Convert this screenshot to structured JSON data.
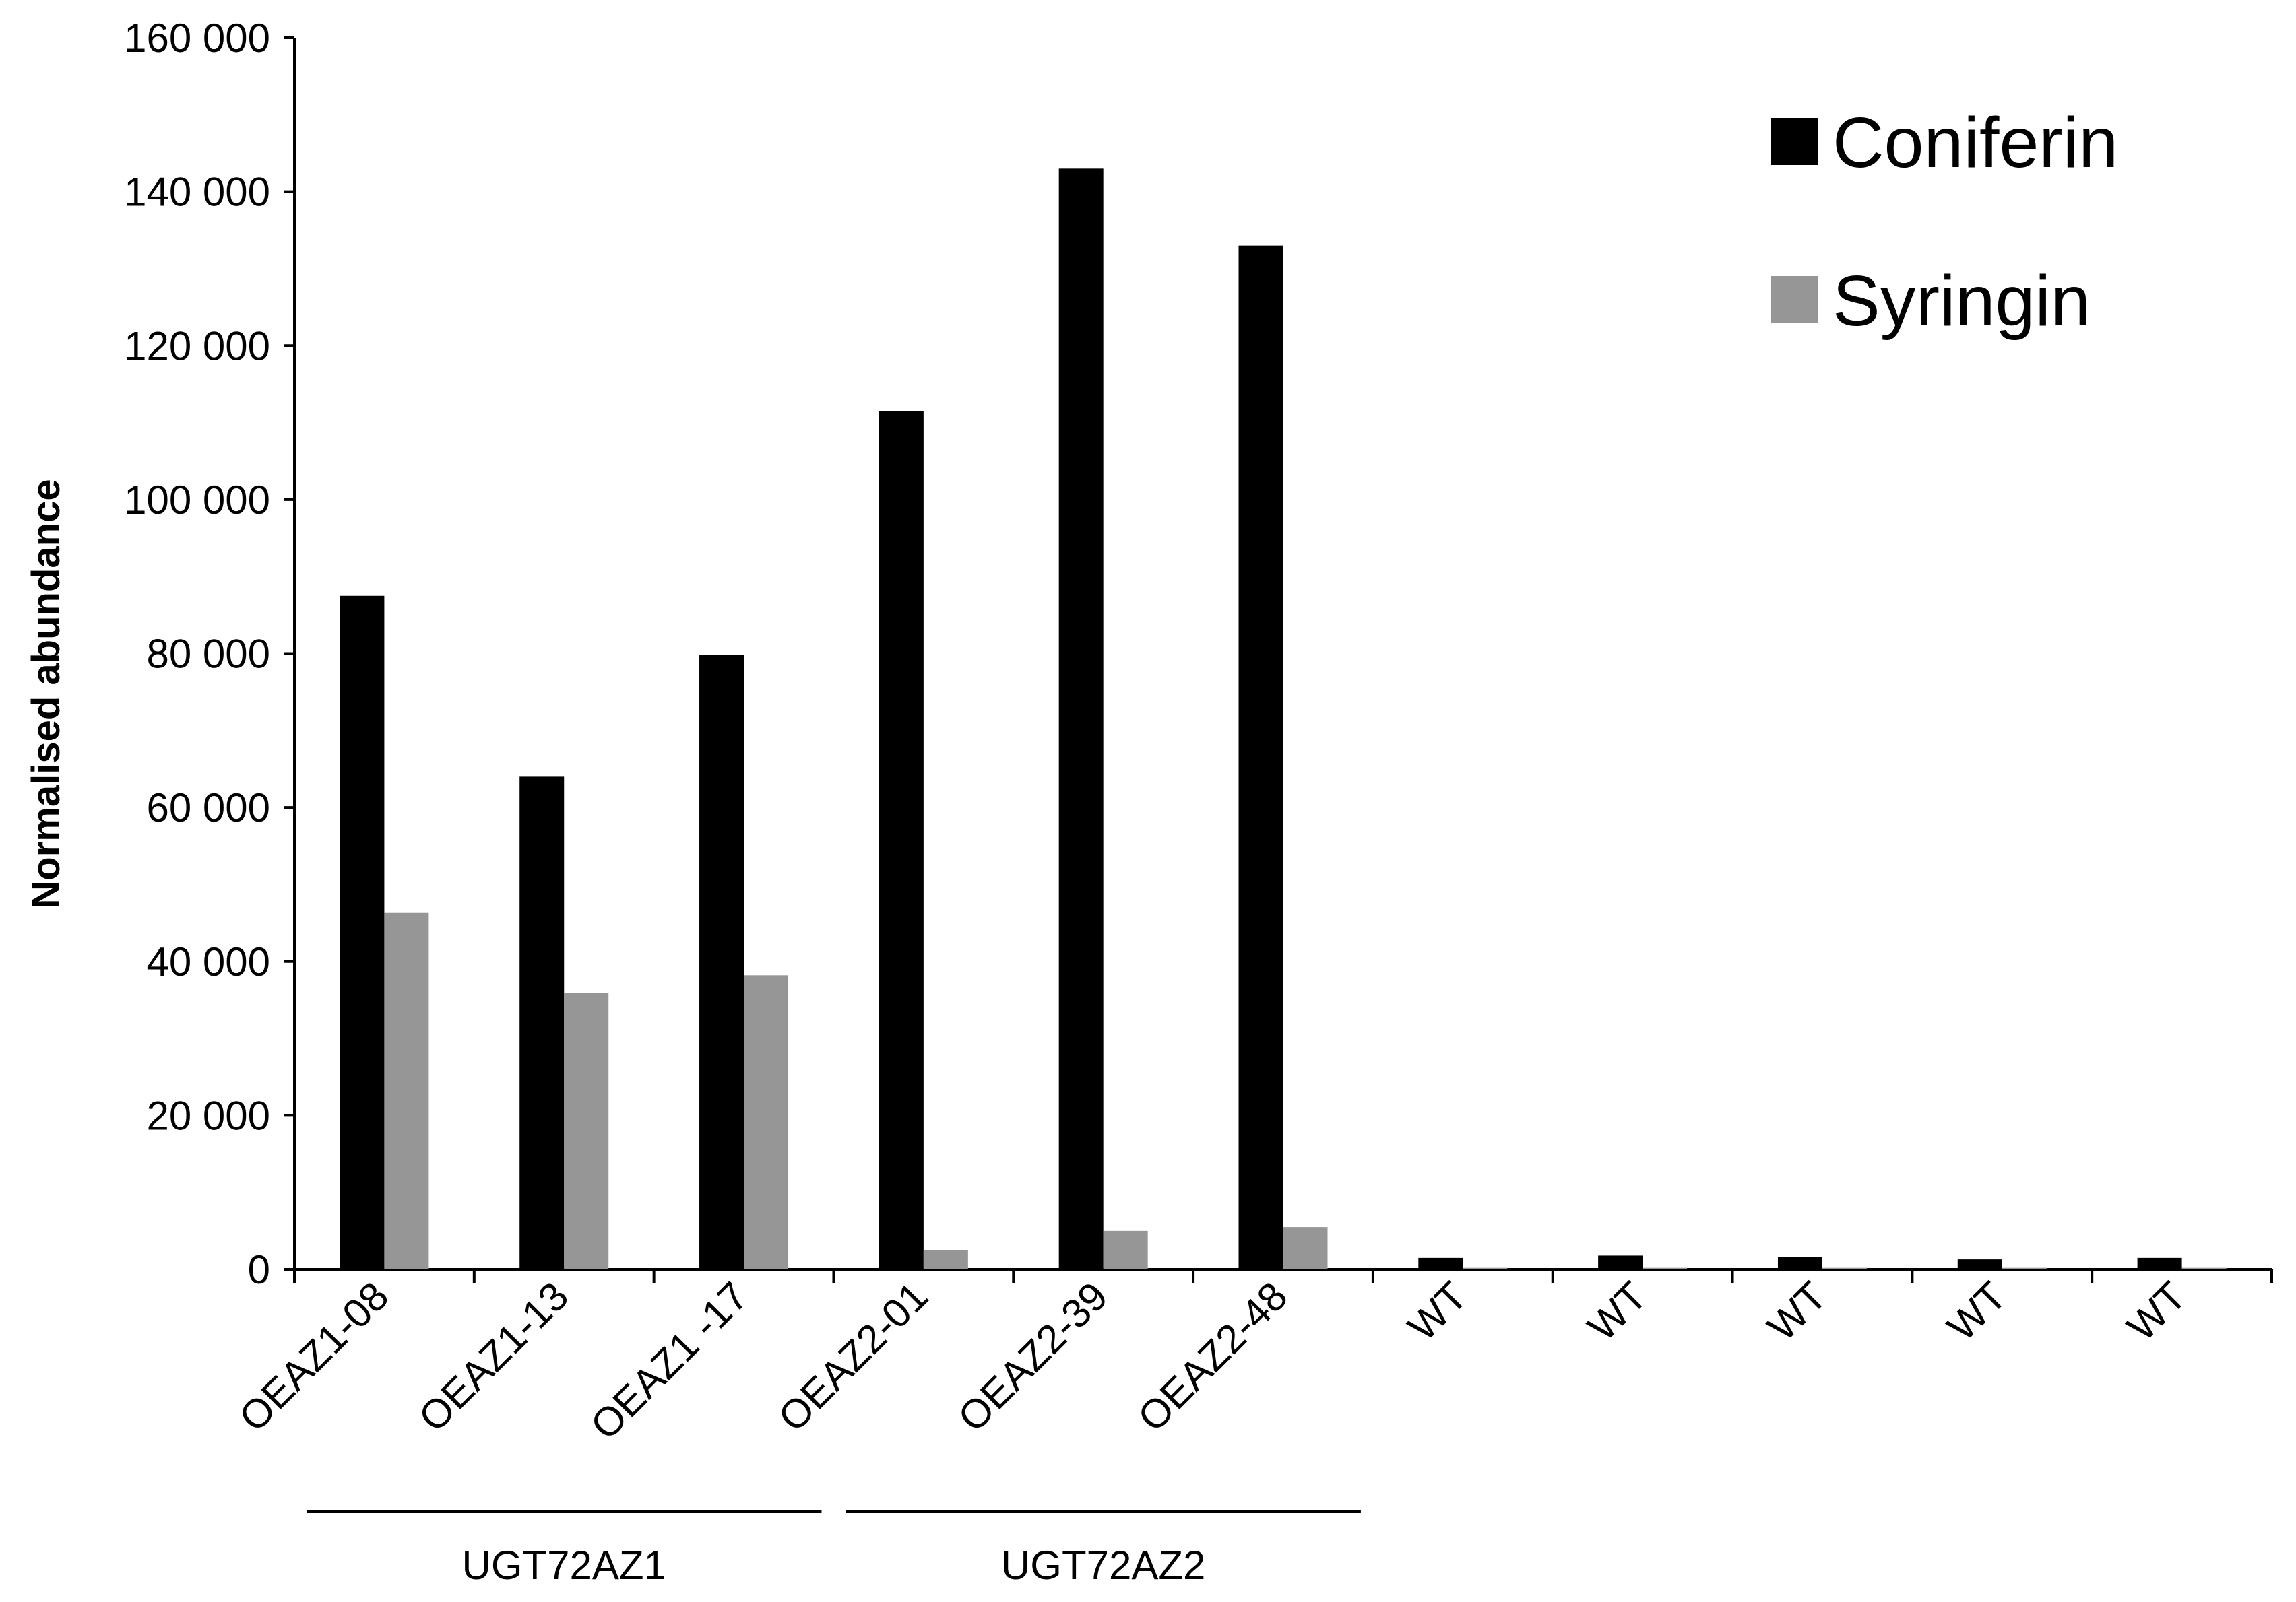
{
  "chart_data": {
    "type": "bar",
    "ylabel": "Normalised abundance",
    "ylim": [
      0,
      160000
    ],
    "yticks": [
      0,
      20000,
      40000,
      60000,
      80000,
      100000,
      120000,
      140000,
      160000
    ],
    "ytick_labels": [
      "0",
      "20 000",
      "40 000",
      "60 000",
      "80 000",
      "100 000",
      "120 000",
      "140 000",
      "160 000"
    ],
    "categories": [
      "OEAZ1-08",
      "OEAZ1-13",
      "OEAZ1 -17",
      "OEAZ2-01",
      "OEAZ2-39",
      "OEAZ2-48",
      "WT",
      "WT",
      "WT",
      "WT",
      "WT"
    ],
    "series": [
      {
        "name": "Coniferin",
        "color": "#000000",
        "values": [
          87500,
          64000,
          79800,
          111500,
          143000,
          133000,
          1500,
          1800,
          1600,
          1300,
          1500
        ]
      },
      {
        "name": "Syringin",
        "color": "#969696",
        "values": [
          46300,
          35900,
          38200,
          2500,
          5000,
          5500,
          200,
          200,
          200,
          200,
          200
        ]
      }
    ],
    "groups": [
      {
        "label": "UGT72AZ1",
        "start": 0,
        "end": 2
      },
      {
        "label": "UGT72AZ2",
        "start": 3,
        "end": 5
      }
    ],
    "legend_position": "top-right",
    "grid": false
  }
}
